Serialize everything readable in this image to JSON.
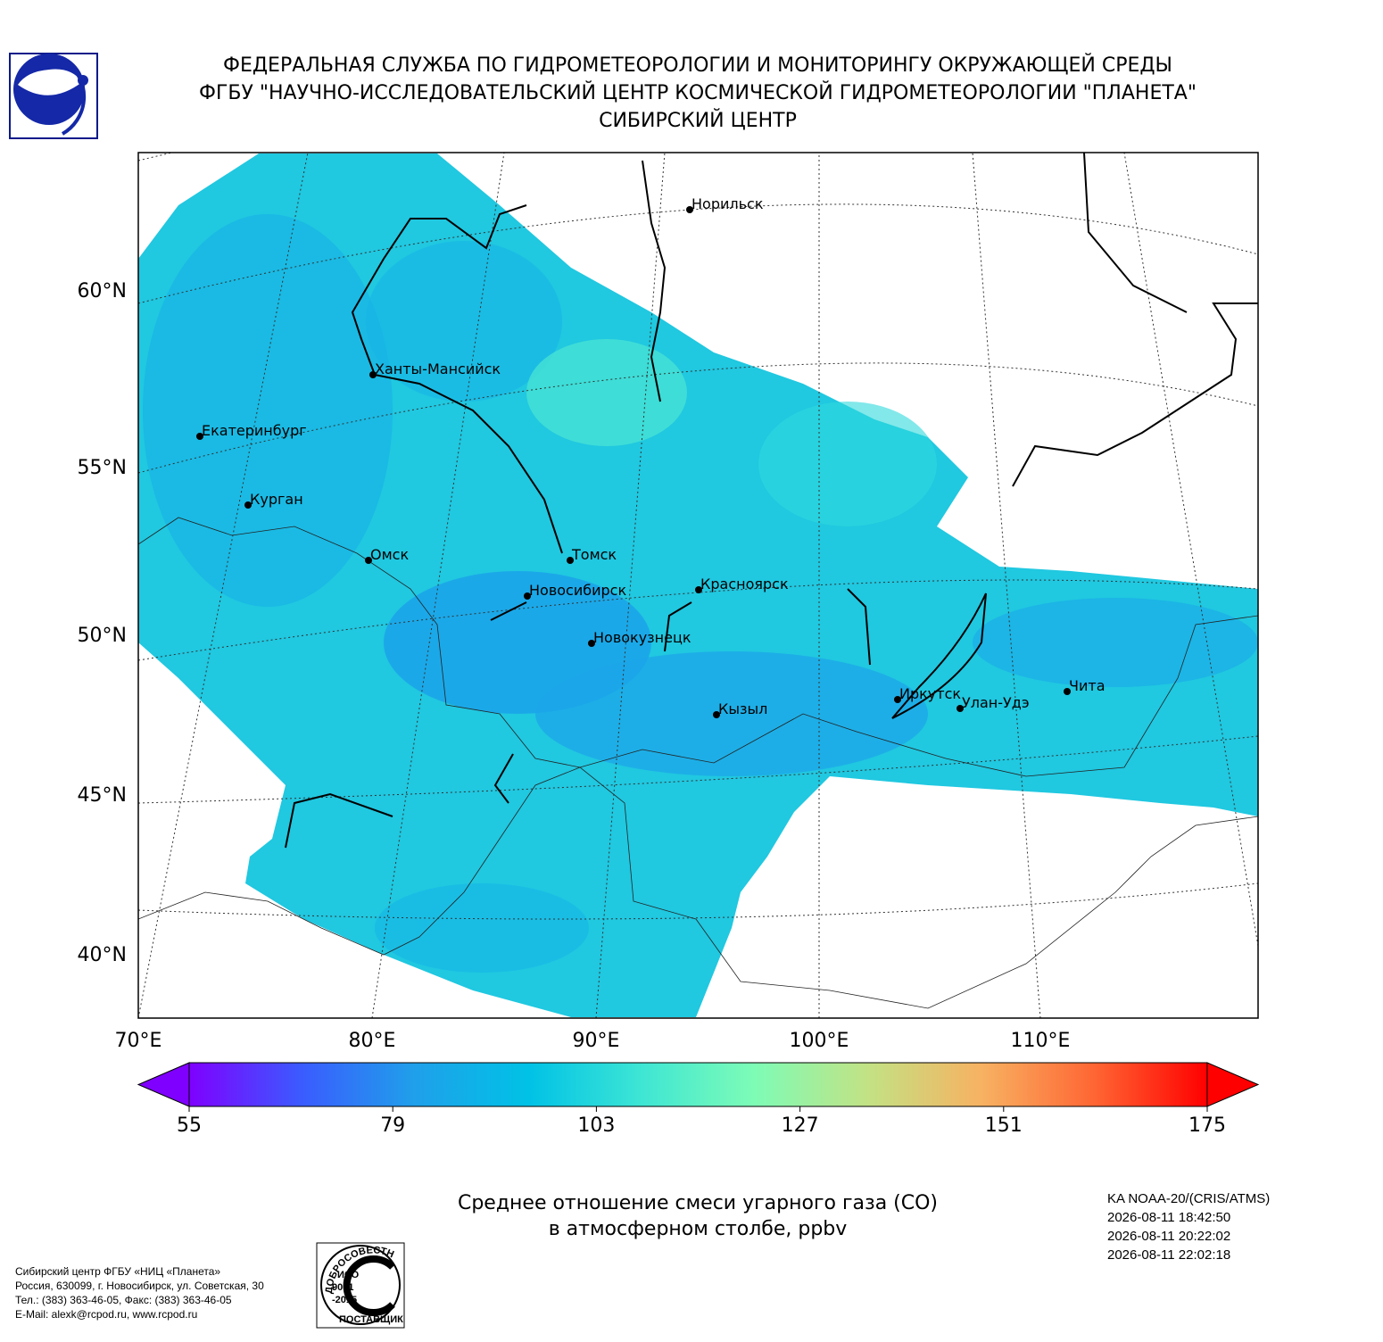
{
  "header": {
    "lines": [
      "ФЕДЕРАЛЬНАЯ СЛУЖБА ПО ГИДРОМЕТЕОРОЛОГИИ И МОНИТОРИНГУ ОКРУЖАЮЩЕЙ СРЕДЫ",
      "ФГБУ \"НАУЧНО-ИССЛЕДОВАТЕЛЬСКИЙ ЦЕНТР КОСМИЧЕСКОЙ ГИДРОМЕТЕОРОЛОГИИ \"ПЛАНЕТА\"",
      "СИБИРСКИЙ ЦЕНТР"
    ]
  },
  "map": {
    "lat_labels": [
      "60°N",
      "55°N",
      "50°N",
      "45°N",
      "40°N"
    ],
    "lon_labels": [
      "70°E",
      "80°E",
      "90°E",
      "100°E",
      "110°E"
    ],
    "cities": [
      "Норильск",
      "Ханты-Мансийск",
      "Екатеринбург",
      "Курган",
      "Омск",
      "Томск",
      "Новосибирск",
      "Красноярск",
      "Новокузнецк",
      "Иркутск",
      "Улан-Удэ",
      "Кызыл",
      "Чита"
    ]
  },
  "colorbar": {
    "range": [
      55,
      175
    ],
    "ticks": [
      55,
      79,
      103,
      127,
      151,
      175
    ],
    "colors": [
      "#7f00ff",
      "#3a5cff",
      "#1fa0ea",
      "#00c2e6",
      "#3ee6d4",
      "#7efcb6",
      "#c2e284",
      "#f7b262",
      "#ff6633",
      "#ff0000"
    ]
  },
  "caption": {
    "lines": [
      "Среднее отношение смеси угарного газа (CO)",
      "в атмосферном столбе, ppbv"
    ]
  },
  "satellite": {
    "lines": [
      "KA NOAA-20/(CRIS/ATMS)",
      "2026-08-11 18:42:50",
      "2026-08-11 20:22:02",
      "2026-08-11 22:02:18"
    ]
  },
  "footer": {
    "lines": [
      "Сибирский центр ФГБУ «НИЦ «Планета»",
      "Россия, 630099, г. Новосибирск, ул. Советская, 30",
      "Тел.: (383) 363-46-05, Факс: (383) 363-46-05",
      "E-Mail: alexk@rcpod.ru, www.rcpod.ru"
    ]
  },
  "badge": {
    "top": "ДОБРОСОВЕСТНЫЙ",
    "middle": [
      "ИСО",
      "9001",
      "-2015"
    ],
    "bottom": "ПОСТАВЩИК"
  }
}
